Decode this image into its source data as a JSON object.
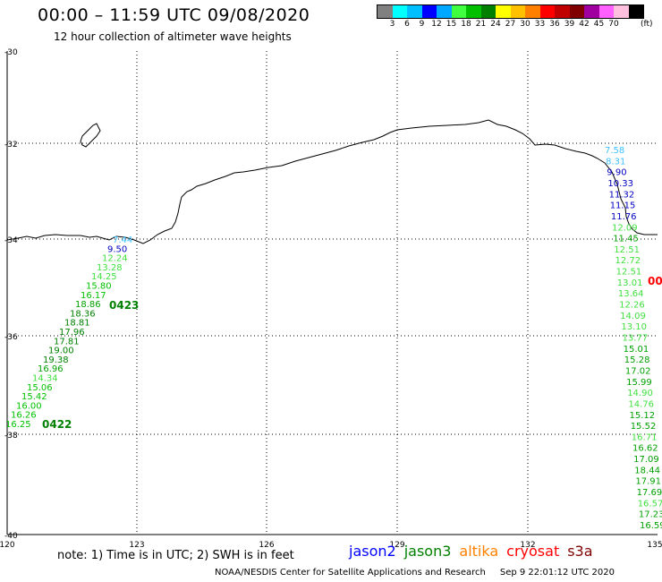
{
  "header": {
    "title": "00:00 – 11:59 UTC 09/08/2020",
    "subtitle": "12 hour collection of altimeter wave heights"
  },
  "colorbar": {
    "colors": [
      "#808080",
      "#00ffff",
      "#00bfff",
      "#0000ff",
      "#00a8ff",
      "#40ff40",
      "#00c000",
      "#008000",
      "#ffff00",
      "#ffc000",
      "#ff8000",
      "#ff0000",
      "#c00000",
      "#800000",
      "#a000a0",
      "#ff60ff",
      "#ffc0e0",
      "#000000"
    ],
    "labels": [
      "3",
      "6",
      "9",
      "12",
      "15",
      "18",
      "21",
      "24",
      "27",
      "30",
      "33",
      "36",
      "39",
      "42",
      "45",
      "70"
    ],
    "unit": "(ft)"
  },
  "axes": {
    "lat_labels": [
      "-30",
      "-32",
      "-34",
      "-36",
      "-38",
      "-40"
    ],
    "lon_labels": [
      "120",
      "123",
      "126",
      "129",
      "132",
      "135"
    ]
  },
  "tracks": [
    {
      "label": "0423",
      "satellite": "jason3",
      "color": "#008000"
    },
    {
      "label": "0422",
      "satellite": "jason3",
      "color": "#008000"
    },
    {
      "label": "00",
      "satellite": "cryosat",
      "color": "#ff0000"
    }
  ],
  "left_track_values": [
    "7.44",
    "9.50",
    "12.24",
    "13.28",
    "14.25",
    "15.80",
    "16.17",
    "18.86",
    "18.36",
    "18.81",
    "17.96",
    "17.81",
    "19.00",
    "19.38",
    "16.96",
    "14.34",
    "15.06",
    "15.42",
    "16.00",
    "16.26",
    "16.25"
  ],
  "left_track_colors": [
    "#40c0ff",
    "#0000c0",
    "#40e040",
    "#40e040",
    "#40e040",
    "#00c000",
    "#00c000",
    "#00a000",
    "#008000",
    "#008000",
    "#008000",
    "#008000",
    "#008000",
    "#008000",
    "#00a000",
    "#40e040",
    "#00c000",
    "#00c000",
    "#00c000",
    "#00c000",
    "#00c000"
  ],
  "right_track_values": [
    "7.58",
    "8.31",
    "9.90",
    "10.33",
    "11.32",
    "11.15",
    "11.76",
    "12.09",
    "11.45",
    "12.51",
    "12.72",
    "12.51",
    "13.01",
    "13.64",
    "12.26",
    "14.09",
    "13.10",
    "13.77",
    "15.01",
    "15.28",
    "17.02",
    "15.99",
    "14.90",
    "14.76",
    "15.12",
    "15.52",
    "16.71",
    "16.62",
    "17.09",
    "18.44",
    "17.91",
    "17.69",
    "16.57",
    "17.23",
    "16.59"
  ],
  "right_track_colors": [
    "#40c0ff",
    "#40c0ff",
    "#0000c0",
    "#0000c0",
    "#0000c0",
    "#0000c0",
    "#0000c0",
    "#40e040",
    "#00a000",
    "#40e040",
    "#40e040",
    "#40e040",
    "#40e040",
    "#40e040",
    "#40e040",
    "#40e040",
    "#40e040",
    "#40e040",
    "#00a000",
    "#00a000",
    "#00a000",
    "#00a000",
    "#40e040",
    "#40e040",
    "#00a000",
    "#00a000",
    "#40e040",
    "#00a000",
    "#00a000",
    "#00a000",
    "#00a000",
    "#00a000",
    "#40e040",
    "#00a000",
    "#00a000"
  ],
  "note": "note:  1) Time is in UTC;  2) SWH is in feet",
  "satellites": [
    {
      "name": "jason2",
      "color": "#0000ff"
    },
    {
      "name": "jason3",
      "color": "#008000"
    },
    {
      "name": "altika",
      "color": "#ff8000"
    },
    {
      "name": "cryosat",
      "color": "#ff0000"
    },
    {
      "name": "s3a",
      "color": "#800000"
    }
  ],
  "footer": {
    "center": "NOAA/NESDIS Center for Satellite Applications and Research",
    "timestamp": "Sep  9 22:01:12 UTC 2020"
  }
}
